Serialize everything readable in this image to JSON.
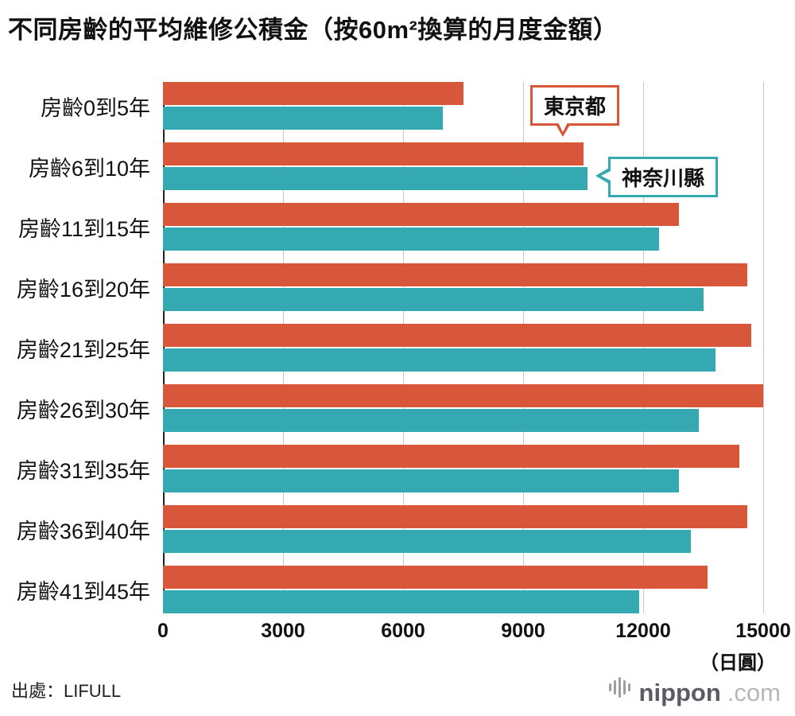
{
  "chart_data": {
    "type": "bar",
    "orientation": "horizontal",
    "title": "不同房齡的平均維修公積金（按60m²換算的月度金額）",
    "categories": [
      "房齡0到5年",
      "房齡6到10年",
      "房齡11到15年",
      "房齡16到20年",
      "房齡21到25年",
      "房齡26到30年",
      "房齡31到35年",
      "房齡36到40年",
      "房齡41到45年"
    ],
    "series": [
      {
        "name": "東京都",
        "color": "#d8573a",
        "values": [
          7500,
          10500,
          12900,
          14600,
          14700,
          15000,
          14400,
          14600,
          13600
        ]
      },
      {
        "name": "神奈川縣",
        "color": "#35a9b2",
        "values": [
          7000,
          10600,
          12400,
          13500,
          13800,
          13400,
          12900,
          13200,
          11900
        ]
      }
    ],
    "xlim": [
      0,
      15000
    ],
    "xticks": [
      0,
      3000,
      6000,
      9000,
      12000,
      15000
    ],
    "x_unit": "（日圓）",
    "legend_position": "callouts-on-plot",
    "grid": "vertical-only"
  },
  "footer": {
    "source": "出處：LIFULL",
    "logo_text_main": "nippon",
    "logo_text_suffix": ".com"
  }
}
